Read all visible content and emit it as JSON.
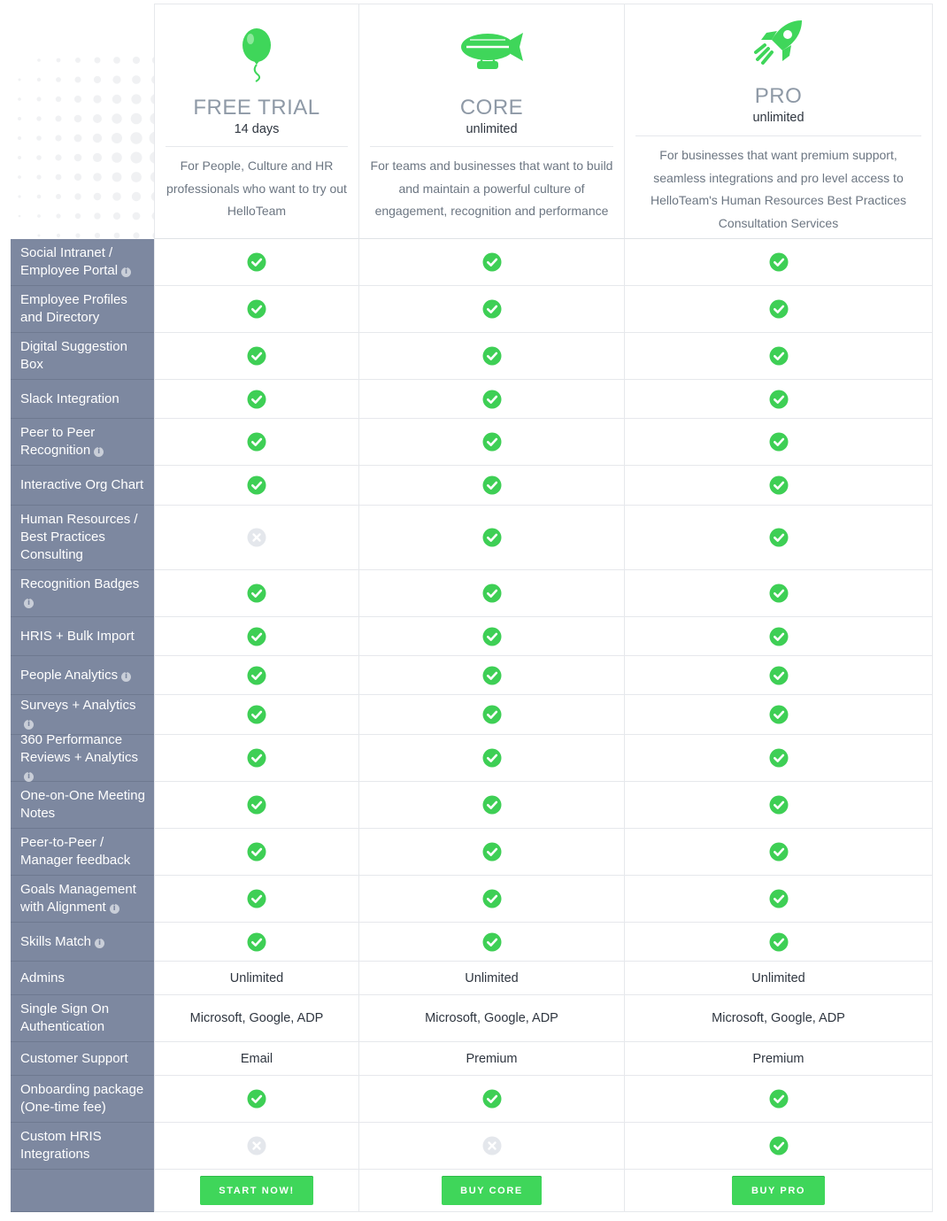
{
  "plans": [
    {
      "name": "FREE TRIAL",
      "sub": "14 days",
      "desc": "For People, Culture and HR professionals who want to try out HelloTeam",
      "icon": "balloon-icon",
      "button": "START NOW!"
    },
    {
      "name": "CORE",
      "sub": "unlimited",
      "desc": "For teams and businesses that want to build and maintain a powerful culture of engagement, recognition and performance",
      "icon": "blimp-icon",
      "button": "BUY CORE"
    },
    {
      "name": "PRO",
      "sub": "unlimited",
      "desc": "For businesses that want premium support, seamless integrations and pro level access to HelloTeam's Human Resources Best Practices Consultation Services",
      "icon": "rocket-icon",
      "button": "BUY PRO"
    }
  ],
  "features": [
    {
      "label": "Social Intranet / Employee Portal",
      "info": true,
      "values": [
        "check",
        "check",
        "check"
      ]
    },
    {
      "label": "Employee Profiles and Directory",
      "info": false,
      "values": [
        "check",
        "check",
        "check"
      ]
    },
    {
      "label": "Digital Suggestion Box",
      "info": false,
      "values": [
        "check",
        "check",
        "check"
      ]
    },
    {
      "label": "Slack Integration",
      "info": false,
      "values": [
        "check",
        "check",
        "check"
      ]
    },
    {
      "label": "Peer to Peer Recognition",
      "info": true,
      "values": [
        "check",
        "check",
        "check"
      ]
    },
    {
      "label": "Interactive Org Chart",
      "info": false,
      "values": [
        "check",
        "check",
        "check"
      ]
    },
    {
      "label": "Human Resources / Best Practices Consulting",
      "info": false,
      "values": [
        "cross",
        "check",
        "check"
      ]
    },
    {
      "label": "Recognition Badges",
      "info": true,
      "values": [
        "check",
        "check",
        "check"
      ]
    },
    {
      "label": "HRIS + Bulk Import",
      "info": false,
      "values": [
        "check",
        "check",
        "check"
      ]
    },
    {
      "label": "People Analytics",
      "info": true,
      "values": [
        "check",
        "check",
        "check"
      ]
    },
    {
      "label": "Surveys + Analytics",
      "info": true,
      "values": [
        "check",
        "check",
        "check"
      ]
    },
    {
      "label": "360 Performance Reviews + Analytics",
      "info": true,
      "values": [
        "check",
        "check",
        "check"
      ]
    },
    {
      "label": "One-on-One Meeting Notes",
      "info": false,
      "values": [
        "check",
        "check",
        "check"
      ]
    },
    {
      "label": "Peer-to-Peer / Manager feedback",
      "info": false,
      "values": [
        "check",
        "check",
        "check"
      ]
    },
    {
      "label": "Goals Management with Alignment",
      "info": true,
      "values": [
        "check",
        "check",
        "check"
      ]
    },
    {
      "label": "Skills Match",
      "info": true,
      "values": [
        "check",
        "check",
        "check"
      ]
    },
    {
      "label": "Admins",
      "info": false,
      "values": [
        "Unlimited",
        "Unlimited",
        "Unlimited"
      ]
    },
    {
      "label": "Single Sign On Authentication",
      "info": false,
      "values": [
        "Microsoft, Google, ADP",
        "Microsoft, Google, ADP",
        "Microsoft, Google, ADP"
      ]
    },
    {
      "label": "Customer Support",
      "info": false,
      "values": [
        "Email",
        "Premium",
        "Premium"
      ]
    },
    {
      "label": "Onboarding package (One-time fee)",
      "info": false,
      "values": [
        "check",
        "check",
        "check"
      ]
    },
    {
      "label": "Custom HRIS Integrations",
      "info": false,
      "values": [
        "cross",
        "cross",
        "check"
      ]
    }
  ],
  "colors": {
    "accent": "#3fd65a",
    "label_bg": "#7d88a0",
    "check": "#3ecf55",
    "cross": "#e4e7ec"
  }
}
